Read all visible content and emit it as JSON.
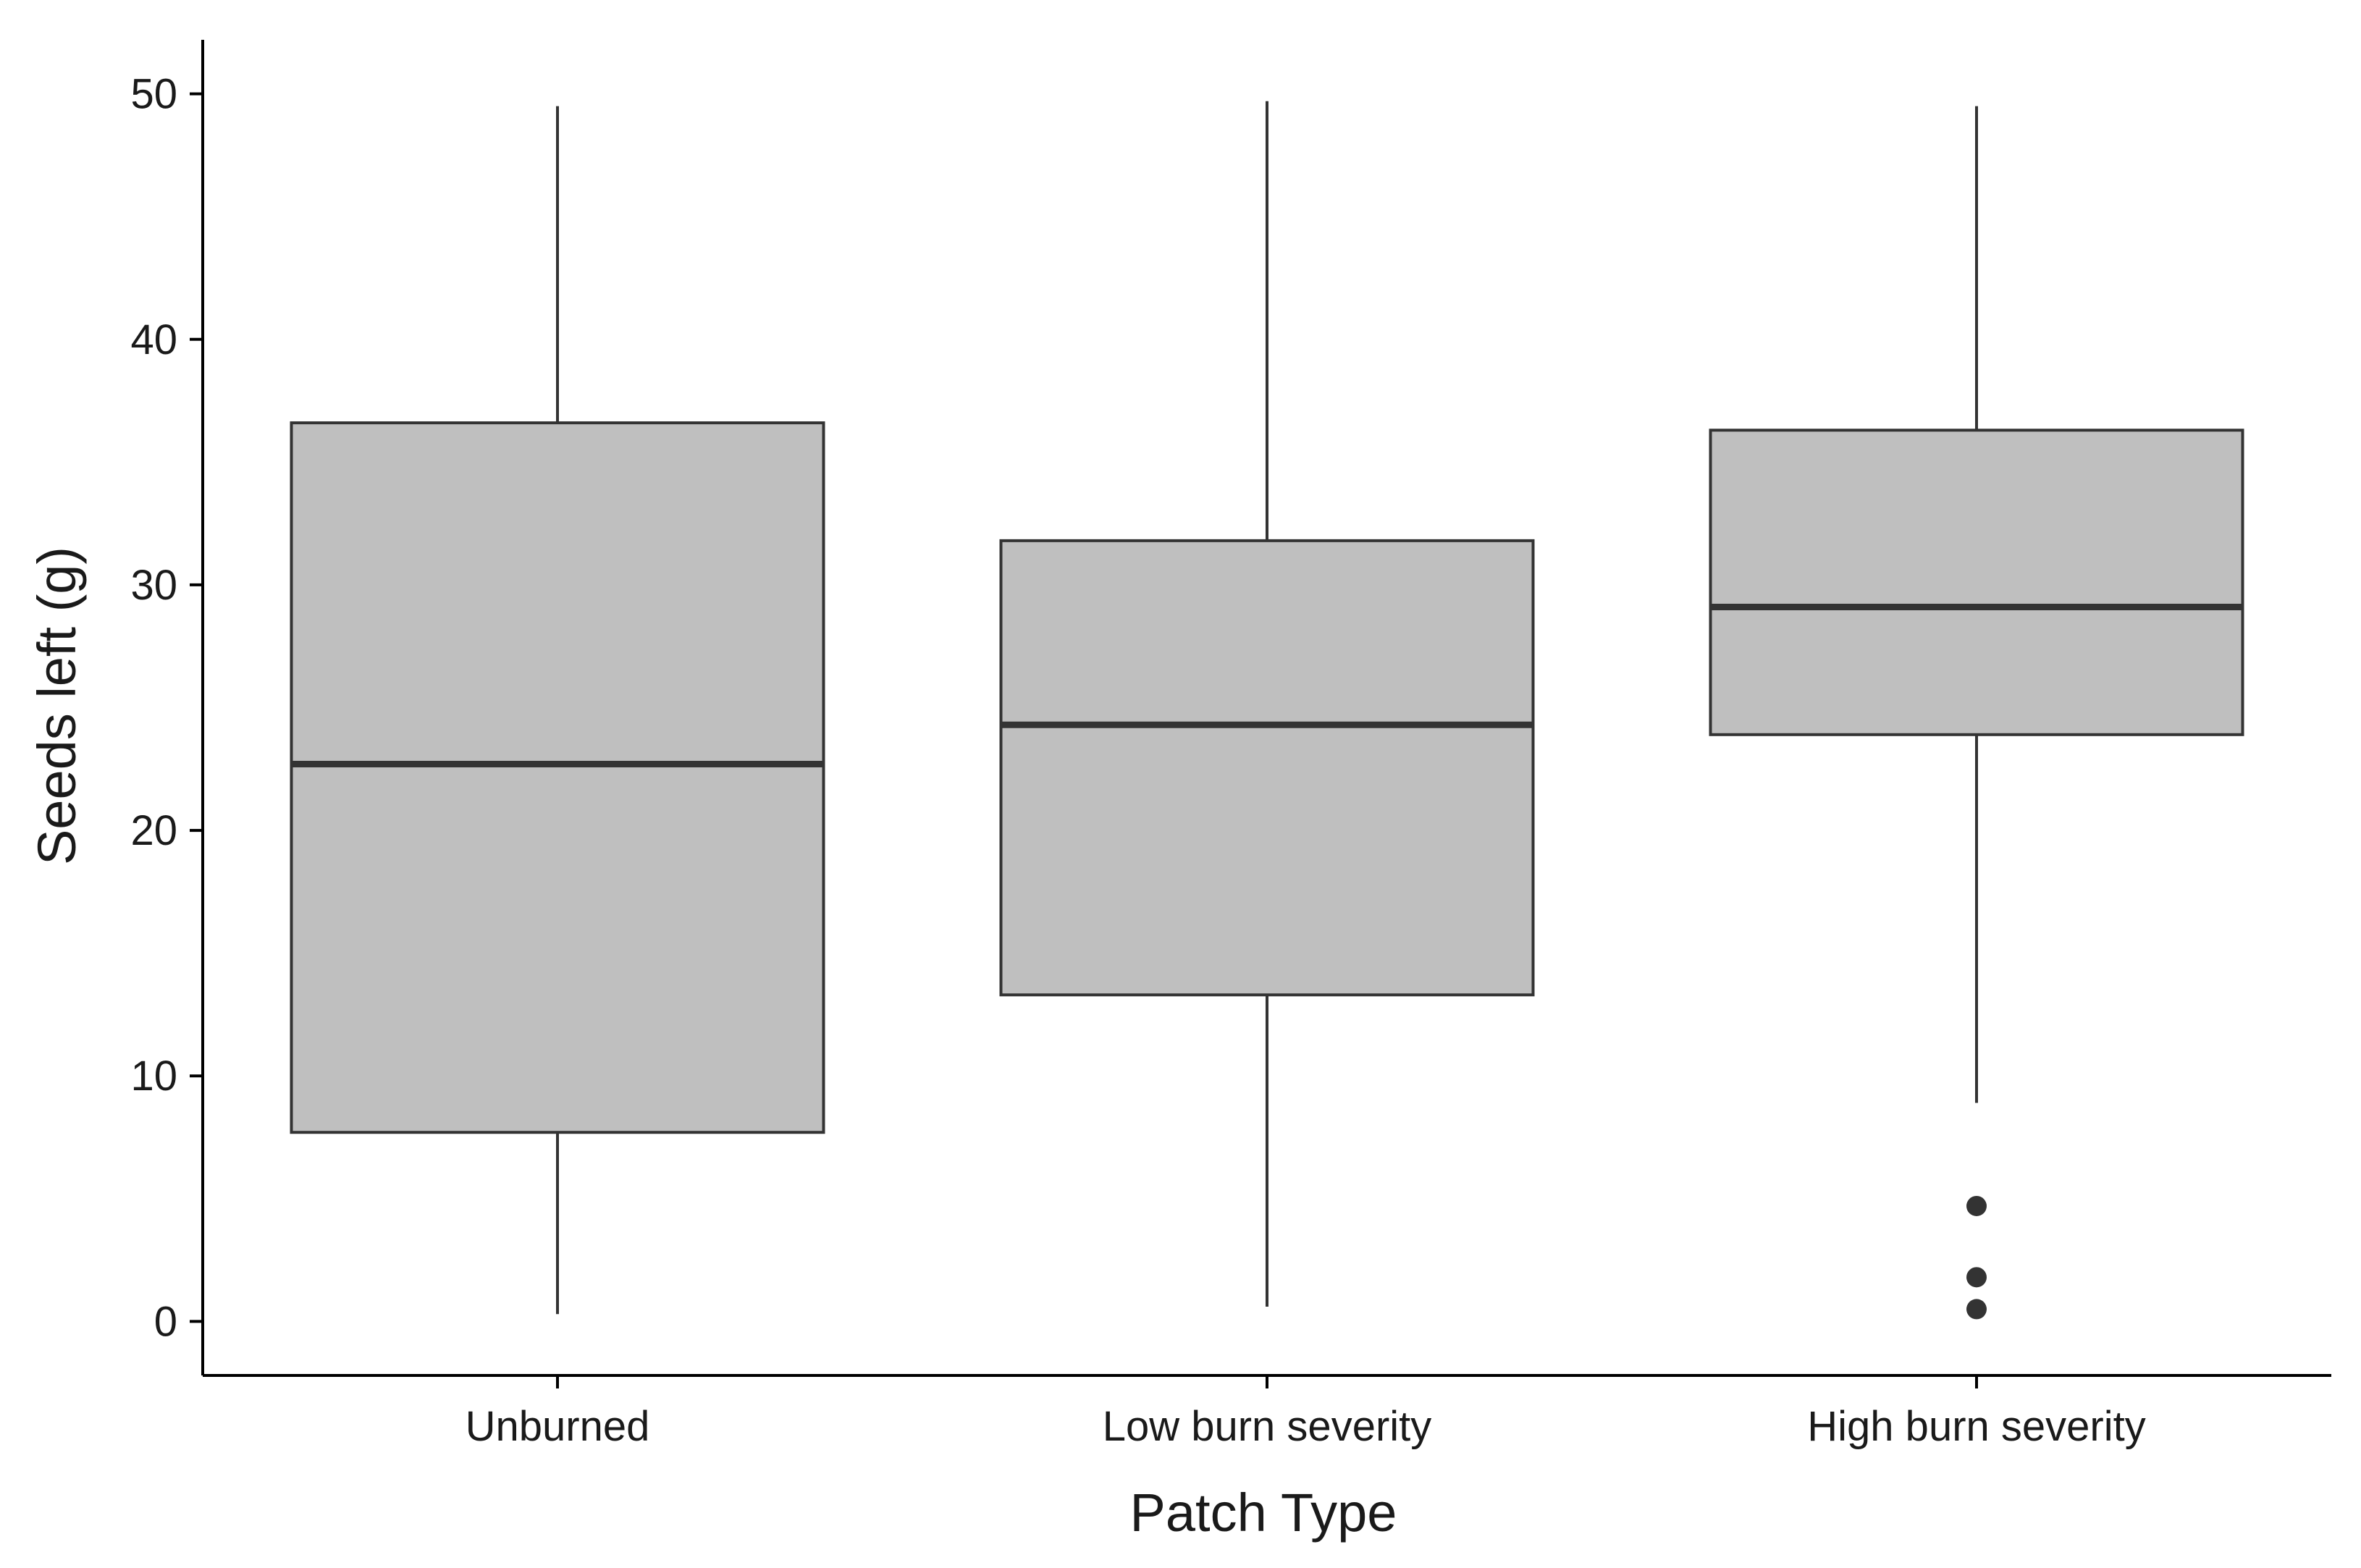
{
  "chart_data": {
    "type": "box",
    "xlabel": "Patch Type",
    "ylabel": "Seeds left (g)",
    "ylim": [
      -2.2,
      52.2
    ],
    "yticks": [
      0,
      10,
      20,
      30,
      40,
      50
    ],
    "grid": false,
    "categories": [
      "Unburned",
      "Low burn severity",
      "High burn severity"
    ],
    "boxes": [
      {
        "category": "Unburned",
        "whisker_low": 0.3,
        "q1": 7.7,
        "median": 22.7,
        "q3": 36.6,
        "whisker_high": 49.5,
        "outliers": []
      },
      {
        "category": "Low burn severity",
        "whisker_low": 0.6,
        "q1": 13.3,
        "median": 24.3,
        "q3": 31.8,
        "whisker_high": 49.7,
        "outliers": []
      },
      {
        "category": "High burn severity",
        "whisker_low": 8.9,
        "q1": 23.9,
        "median": 29.1,
        "q3": 36.3,
        "whisker_high": 49.5,
        "outliers": [
          4.7,
          1.8,
          0.5
        ]
      }
    ],
    "colors": {
      "box_fill": "#bfbfbf",
      "line": "#333333",
      "axis": "#000000"
    }
  }
}
